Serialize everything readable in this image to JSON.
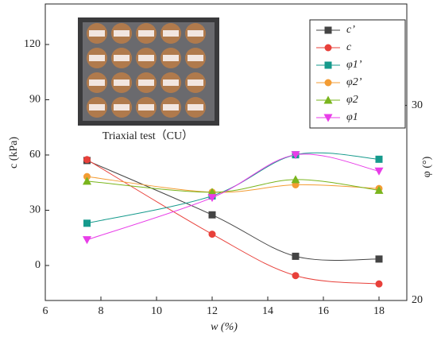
{
  "chart_data": {
    "type": "line",
    "xlabel": "w (%)",
    "ylabel": "c (kPa)",
    "y2label": "φ (°)",
    "annotation": "Triaxial test（CU）",
    "x": [
      7.5,
      12,
      15,
      18
    ],
    "xlim": [
      6,
      19
    ],
    "xticks": [
      6,
      8,
      10,
      12,
      14,
      16,
      18
    ],
    "ylim": [
      -19,
      142
    ],
    "yticks": [
      0,
      30,
      60,
      90,
      120
    ],
    "y2lim": [
      20,
      35.2
    ],
    "y2ticks": [
      20,
      30
    ],
    "legend": "upper right",
    "series": [
      {
        "name": "c’",
        "color": "#444444",
        "marker": "square",
        "values": [
          57,
          27.5,
          5,
          3.5
        ]
      },
      {
        "name": "c",
        "color": "#e8403a",
        "marker": "circle",
        "values": [
          57.5,
          17,
          -5.5,
          -10
        ]
      },
      {
        "name": "φ1’",
        "color": "#159a8c",
        "marker": "square",
        "axis": "y2",
        "values": [
          23.96,
          25.36,
          27.47,
          27.24
        ]
      },
      {
        "name": "φ2’",
        "color": "#f39c33",
        "marker": "circle",
        "axis": "y2",
        "values": [
          26.35,
          25.55,
          25.93,
          25.74
        ]
      },
      {
        "name": "φ2",
        "color": "#7ab51d",
        "marker": "triangle",
        "axis": "y2",
        "values": [
          26.12,
          25.55,
          26.2,
          25.65
        ]
      },
      {
        "name": "φ1",
        "color": "#e83de8",
        "marker": "triangle-down",
        "axis": "y2",
        "values": [
          23.11,
          25.27,
          27.47,
          26.63
        ]
      }
    ]
  }
}
